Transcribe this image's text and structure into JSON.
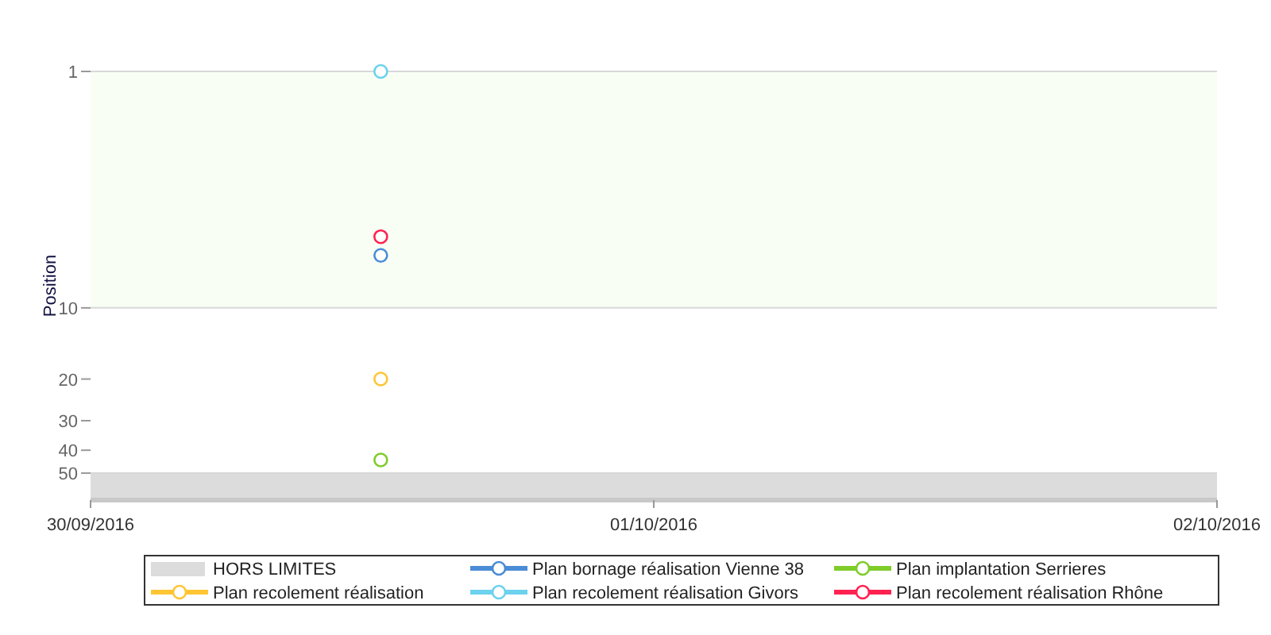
{
  "chart_data": {
    "type": "line",
    "ylabel": "Position",
    "x": [
      "2016-09-30T12:22"
    ],
    "xlim": [
      "2016-09-30",
      "2016-10-02"
    ],
    "xticks": [
      {
        "value": "2016-09-30",
        "label": "30/09/2016"
      },
      {
        "value": "2016-10-01",
        "label": "01/10/2016"
      },
      {
        "value": "2016-10-02",
        "label": "02/10/2016"
      }
    ],
    "log": true,
    "ylim": [
      65,
      1
    ],
    "yticks": [
      1,
      10,
      20,
      30,
      40,
      50
    ],
    "marker": "circle",
    "legend": "bottom",
    "bands": [
      {
        "axis": "y",
        "from": 1,
        "to": 10,
        "color": "#f8fef4"
      },
      {
        "axis": "y",
        "from": 50,
        "to": 65,
        "label": "HORS LIMITES",
        "color": "#dcdcdc"
      }
    ],
    "series": [
      {
        "name": "Plan bornage réalisation Vienne 38",
        "color": "#4a8cd6",
        "values": [
          6
        ]
      },
      {
        "name": "Plan implantation Serrieres",
        "color": "#7fcc2a",
        "values": [
          44
        ]
      },
      {
        "name": "Plan recolement réalisation",
        "color": "#ffc533",
        "values": [
          20
        ]
      },
      {
        "name": "Plan recolement réalisation Givors",
        "color": "#6cd2ee",
        "values": [
          1
        ]
      },
      {
        "name": "Plan recolement réalisation Rhône",
        "color": "#ff2250",
        "values": [
          5
        ]
      }
    ]
  }
}
